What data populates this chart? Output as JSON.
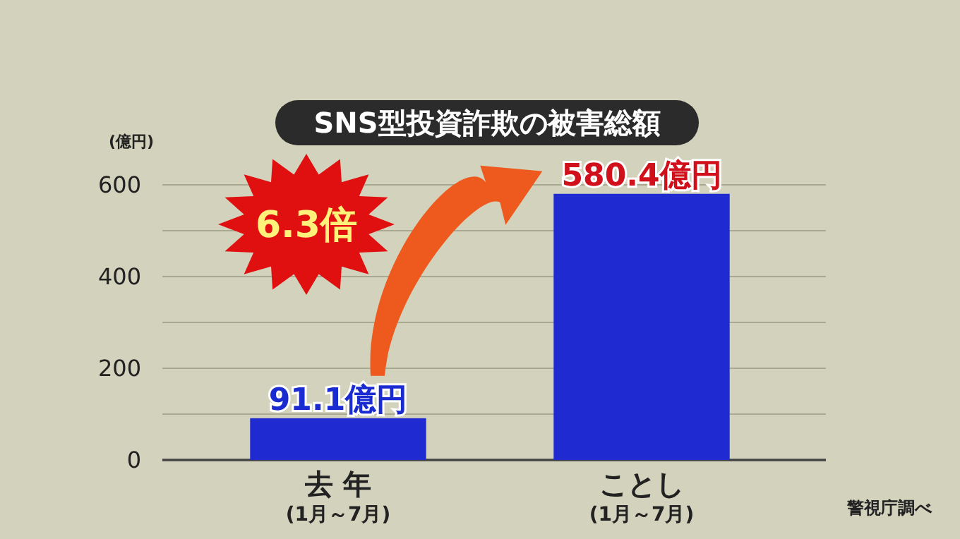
{
  "chart_data": {
    "type": "bar",
    "title": "SNS型投資詐欺の被害総額",
    "ylabel": "(億円)",
    "categories": [
      "去 年\n(1月～7月)",
      "ことし\n(1月～7月)"
    ],
    "values": [
      91.1,
      580.4
    ],
    "color": "#1f2bd1",
    "value_labels": [
      "91.1億円",
      "580.4億円"
    ],
    "ylim": [
      0,
      600
    ],
    "yticks": [
      0,
      {
        "value": 100,
        "label": null
      },
      200,
      {
        "value": 300,
        "label": null
      },
      400,
      {
        "value": 500,
        "label": null
      },
      600
    ],
    "grid": "y",
    "annotations": [
      {
        "text": "6.3倍"
      },
      {
        "text": "警視庁調べ"
      }
    ]
  }
}
